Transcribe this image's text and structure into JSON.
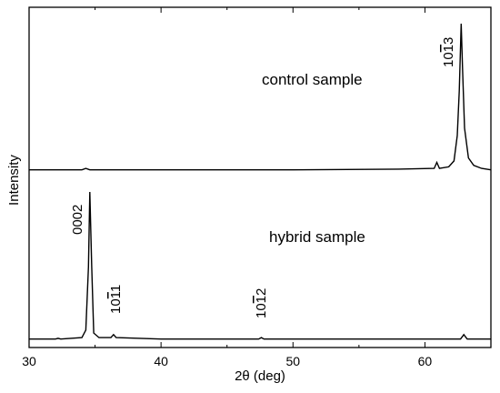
{
  "chart_data": {
    "type": "line",
    "xlabel": "2θ (deg)",
    "ylabel": "Intensity",
    "xlim": [
      30,
      65
    ],
    "xticks": [
      30,
      40,
      50,
      60
    ],
    "y_tick_labels": false,
    "grid": false,
    "legend": "none",
    "series": [
      {
        "name": "control sample",
        "points": [
          [
            30,
            0.02
          ],
          [
            34.0,
            0.02
          ],
          [
            34.3,
            0.03
          ],
          [
            34.6,
            0.02
          ],
          [
            40,
            0.02
          ],
          [
            50,
            0.02
          ],
          [
            58,
            0.025
          ],
          [
            60.7,
            0.03
          ],
          [
            60.9,
            0.07
          ],
          [
            61.1,
            0.03
          ],
          [
            61.8,
            0.04
          ],
          [
            62.2,
            0.08
          ],
          [
            62.45,
            0.25
          ],
          [
            62.6,
            0.55
          ],
          [
            62.75,
            1.0
          ],
          [
            62.85,
            0.7
          ],
          [
            63.0,
            0.3
          ],
          [
            63.3,
            0.1
          ],
          [
            63.7,
            0.05
          ],
          [
            64.3,
            0.03
          ],
          [
            65,
            0.02
          ]
        ]
      },
      {
        "name": "hybrid sample",
        "points": [
          [
            30,
            0.02
          ],
          [
            32,
            0.02
          ],
          [
            32.2,
            0.025
          ],
          [
            32.4,
            0.02
          ],
          [
            34,
            0.03
          ],
          [
            34.3,
            0.08
          ],
          [
            34.5,
            0.5
          ],
          [
            34.6,
            1.0
          ],
          [
            34.75,
            0.5
          ],
          [
            34.9,
            0.06
          ],
          [
            35.3,
            0.03
          ],
          [
            36.2,
            0.03
          ],
          [
            36.4,
            0.05
          ],
          [
            36.6,
            0.03
          ],
          [
            40,
            0.02
          ],
          [
            47.4,
            0.02
          ],
          [
            47.6,
            0.03
          ],
          [
            47.8,
            0.02
          ],
          [
            55,
            0.02
          ],
          [
            62.7,
            0.02
          ],
          [
            62.95,
            0.05
          ],
          [
            63.2,
            0.02
          ],
          [
            65,
            0.02
          ]
        ]
      }
    ],
    "annotations": {
      "control": "control sample",
      "hybrid": "hybrid sample",
      "peak_1013": "10",
      "peak_1013_bar": "1",
      "peak_1013_end": "3",
      "peak_0002": "0002",
      "peak_1011": "10",
      "peak_1011_bar": "1",
      "peak_1011_end": "1",
      "peak_1012": "10",
      "peak_1012_bar": "1",
      "peak_1012_end": "2"
    }
  }
}
